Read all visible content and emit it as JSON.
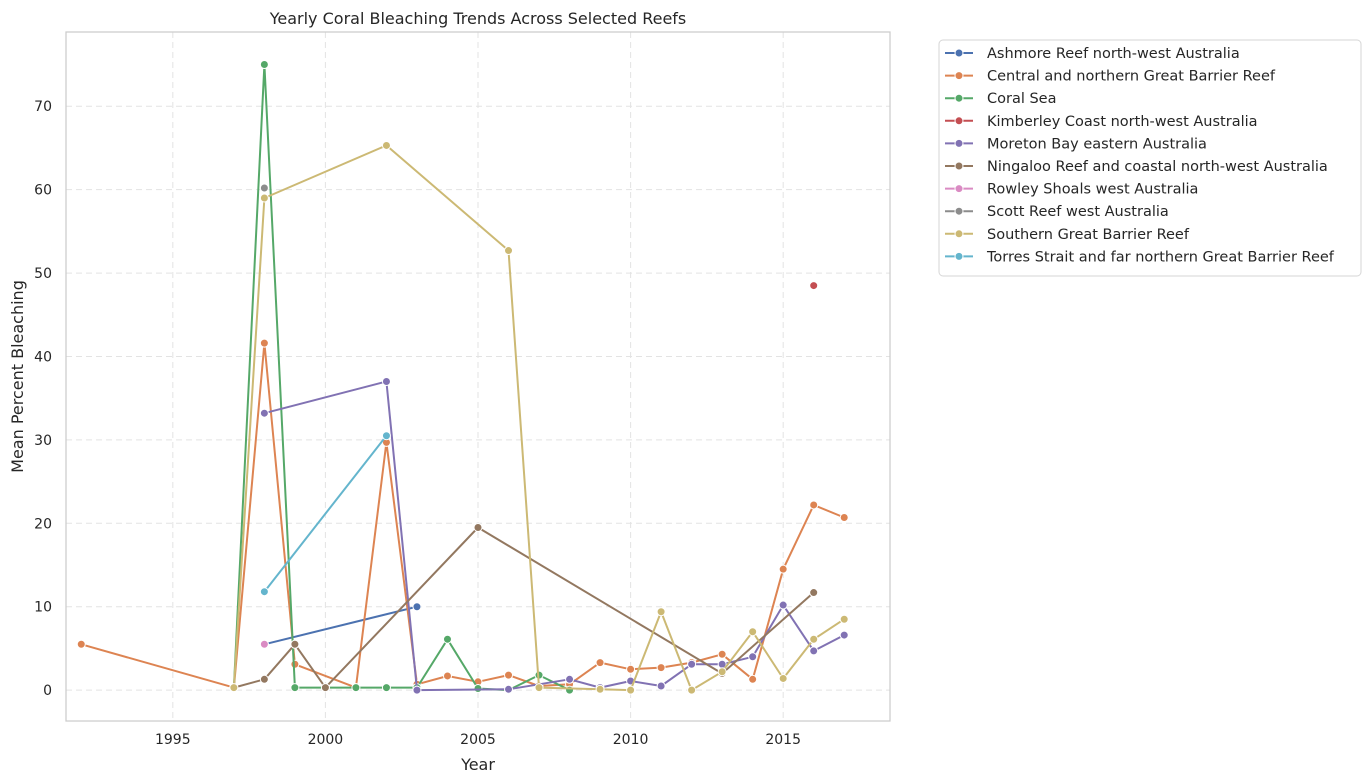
{
  "chart_data": {
    "type": "line",
    "title": "Yearly Coral Bleaching Trends Across Selected Reefs",
    "xlabel": "Year",
    "ylabel": "Mean Percent Bleaching",
    "xlim": [
      1991.5,
      2018.5
    ],
    "ylim": [
      -3.7,
      78.9
    ],
    "xticks": [
      1995,
      2000,
      2005,
      2010,
      2015
    ],
    "yticks": [
      0,
      10,
      20,
      30,
      40,
      50,
      60,
      70
    ],
    "grid": true,
    "legend_position": "outside-top-right",
    "series": [
      {
        "name": "Ashmore Reef north-west Australia",
        "color": "#4c72b0",
        "points": [
          [
            1998,
            5.5
          ],
          [
            2003,
            10.0
          ]
        ]
      },
      {
        "name": "Central and northern Great Barrier Reef",
        "color": "#dd8452",
        "points": [
          [
            1992,
            5.5
          ],
          [
            1997,
            0.3
          ],
          [
            1998,
            41.6
          ],
          [
            1999,
            3.1
          ],
          [
            2001,
            0.3
          ],
          [
            2002,
            29.7
          ],
          [
            2003,
            0.7
          ],
          [
            2004,
            1.7
          ],
          [
            2005,
            1.0
          ],
          [
            2006,
            1.8
          ],
          [
            2007,
            0.5
          ],
          [
            2008,
            0.7
          ],
          [
            2009,
            3.3
          ],
          [
            2010,
            2.5
          ],
          [
            2011,
            2.7
          ],
          [
            2012,
            3.3
          ],
          [
            2013,
            4.3
          ],
          [
            2014,
            1.3
          ],
          [
            2015,
            14.5
          ],
          [
            2016,
            22.2
          ],
          [
            2017,
            20.7
          ]
        ]
      },
      {
        "name": "Coral Sea",
        "color": "#55a868",
        "points": [
          [
            1997,
            0.3
          ],
          [
            1998,
            75.0
          ],
          [
            1999,
            0.3
          ],
          [
            2000,
            0.3
          ],
          [
            2001,
            0.3
          ],
          [
            2002,
            0.3
          ],
          [
            2003,
            0.3
          ],
          [
            2004,
            6.1
          ],
          [
            2005,
            0.2
          ],
          [
            2006,
            0.0
          ],
          [
            2007,
            1.8
          ],
          [
            2008,
            0.0
          ]
        ]
      },
      {
        "name": "Kimberley Coast north-west Australia",
        "color": "#c44e52",
        "points": [
          [
            2016,
            48.5
          ]
        ]
      },
      {
        "name": "Moreton Bay eastern Australia",
        "color": "#8172b3",
        "points": [
          [
            1998,
            33.2
          ],
          [
            2002,
            37.0
          ],
          [
            2003,
            0.0
          ],
          [
            2006,
            0.1
          ],
          [
            2008,
            1.3
          ],
          [
            2009,
            0.3
          ],
          [
            2010,
            1.1
          ],
          [
            2011,
            0.5
          ],
          [
            2012,
            3.1
          ],
          [
            2013,
            3.1
          ],
          [
            2014,
            4.0
          ],
          [
            2015,
            10.2
          ],
          [
            2016,
            4.7
          ],
          [
            2017,
            6.6
          ]
        ]
      },
      {
        "name": "Ningaloo Reef and coastal north-west Australia",
        "color": "#937860",
        "points": [
          [
            1997,
            0.3
          ],
          [
            1998,
            1.3
          ],
          [
            1999,
            5.5
          ],
          [
            2000,
            0.3
          ],
          [
            2005,
            19.5
          ],
          [
            2013,
            2.0
          ],
          [
            2016,
            11.7
          ]
        ]
      },
      {
        "name": "Rowley Shoals west Australia",
        "color": "#da8bc3",
        "points": [
          [
            1998,
            5.5
          ]
        ]
      },
      {
        "name": "Scott Reef west Australia",
        "color": "#8c8c8c",
        "points": [
          [
            1998,
            60.2
          ]
        ]
      },
      {
        "name": "Southern Great Barrier Reef",
        "color": "#ccb974",
        "points": [
          [
            1997,
            0.3
          ],
          [
            1998,
            59.0
          ],
          [
            2002,
            65.3
          ],
          [
            2006,
            52.7
          ],
          [
            2007,
            0.3
          ],
          [
            2009,
            0.1
          ],
          [
            2010,
            0.0
          ],
          [
            2011,
            9.4
          ],
          [
            2012,
            0.0
          ],
          [
            2013,
            2.2
          ],
          [
            2014,
            7.0
          ],
          [
            2015,
            1.4
          ],
          [
            2016,
            6.1
          ],
          [
            2017,
            8.5
          ]
        ]
      },
      {
        "name": "Torres Strait and far northern Great Barrier Reef",
        "color": "#64b5cd",
        "points": [
          [
            1998,
            11.8
          ],
          [
            2002,
            30.5
          ]
        ]
      }
    ]
  }
}
